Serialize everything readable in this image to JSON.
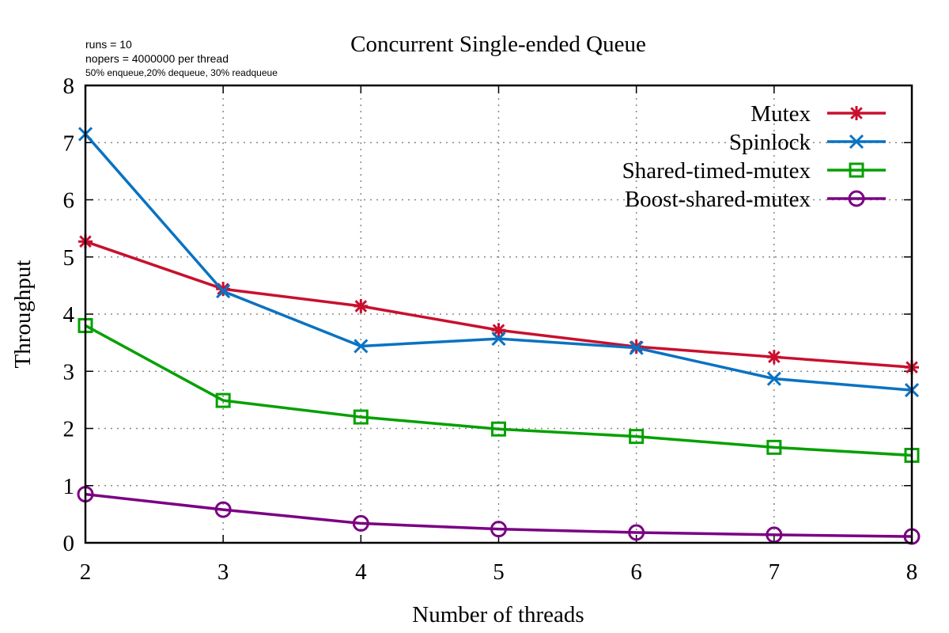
{
  "annotations": {
    "runs": "runs = 10",
    "nopers": "nopers = 4000000 per thread",
    "mix": "50% enqueue,20% dequeue, 30% readqueue"
  },
  "chart_data": {
    "type": "line",
    "title": "Concurrent Single-ended Queue",
    "xlabel": "Number of threads",
    "ylabel": "Throughput",
    "x": [
      2,
      3,
      4,
      5,
      6,
      7,
      8
    ],
    "xlim": [
      2,
      8
    ],
    "ylim": [
      0,
      8
    ],
    "xticks": [
      "2",
      "3",
      "4",
      "5",
      "6",
      "7",
      "8"
    ],
    "yticks": [
      "0",
      "1",
      "2",
      "3",
      "4",
      "5",
      "6",
      "7",
      "8"
    ],
    "grid": true,
    "legend_position": "top-right",
    "series": [
      {
        "name": "Mutex",
        "color": "#c8102e",
        "marker": "star",
        "values": [
          5.27,
          4.44,
          4.14,
          3.72,
          3.43,
          3.25,
          3.07
        ]
      },
      {
        "name": "Spinlock",
        "color": "#0a72c2",
        "marker": "cross",
        "values": [
          7.15,
          4.4,
          3.44,
          3.57,
          3.41,
          2.87,
          2.67
        ]
      },
      {
        "name": "Shared-timed-mutex",
        "color": "#05a000",
        "marker": "square",
        "values": [
          3.8,
          2.49,
          2.2,
          1.99,
          1.86,
          1.67,
          1.53
        ]
      },
      {
        "name": "Boost-shared-mutex",
        "color": "#7a0082",
        "marker": "circle",
        "values": [
          0.85,
          0.58,
          0.34,
          0.24,
          0.18,
          0.14,
          0.11
        ]
      }
    ]
  }
}
